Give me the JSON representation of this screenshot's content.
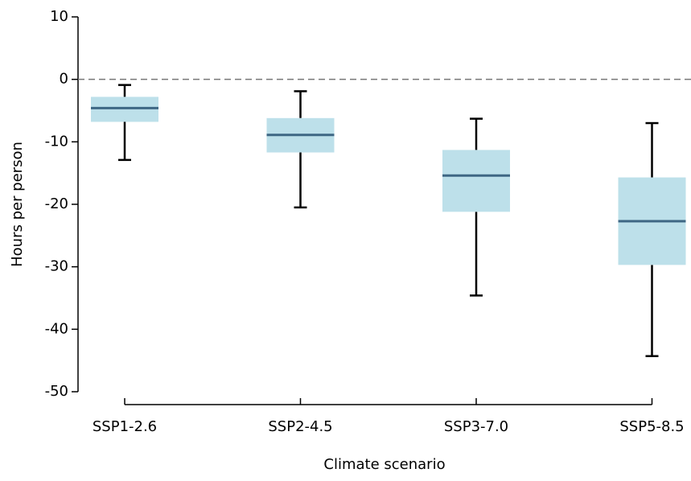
{
  "chart_data": {
    "type": "box",
    "x_label": "Climate scenario",
    "y_label": "Hours per person",
    "categories": [
      "SSP1-2.6",
      "SSP2-4.5",
      "SSP3-7.0",
      "SSP5-8.5"
    ],
    "whisker_high": [
      -0.9,
      -1.9,
      -6.3,
      -7.0
    ],
    "q3": [
      -2.8,
      -6.2,
      -11.3,
      -15.7
    ],
    "median": [
      -4.6,
      -8.9,
      -15.4,
      -22.7
    ],
    "q1": [
      -6.8,
      -11.7,
      -21.2,
      -29.7
    ],
    "whisker_low": [
      -12.9,
      -20.5,
      -34.6,
      -44.3
    ],
    "box_color": "#bde0ea",
    "median_color": "#3e6784",
    "hline": 0,
    "ylim": [
      10,
      -50
    ],
    "yticks": [
      10,
      0,
      -10,
      -20,
      -30,
      -40,
      -50
    ]
  }
}
